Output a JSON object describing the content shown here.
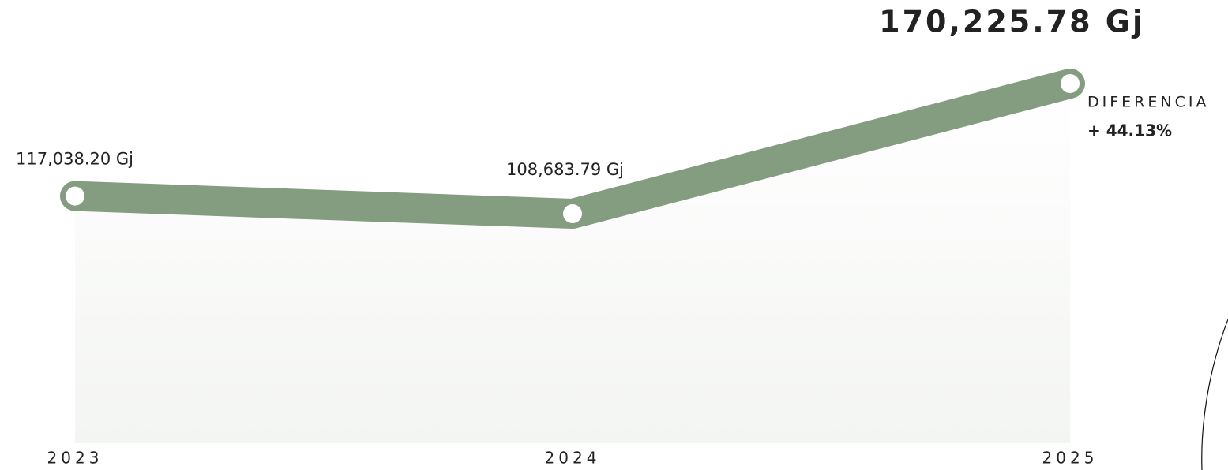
{
  "chart_data": {
    "type": "line",
    "categories": [
      "2023",
      "2024",
      "2025"
    ],
    "series": [
      {
        "name": null,
        "color": "#849c80",
        "values": [
          117038.2,
          108683.79,
          170225.78
        ],
        "value_labels": [
          "117,038.20 Gj",
          "108,683.79 Gj",
          "170,225.78 Gj"
        ]
      }
    ],
    "annotations": [
      "DIFERENCIA",
      "+ 44.13%"
    ]
  }
}
